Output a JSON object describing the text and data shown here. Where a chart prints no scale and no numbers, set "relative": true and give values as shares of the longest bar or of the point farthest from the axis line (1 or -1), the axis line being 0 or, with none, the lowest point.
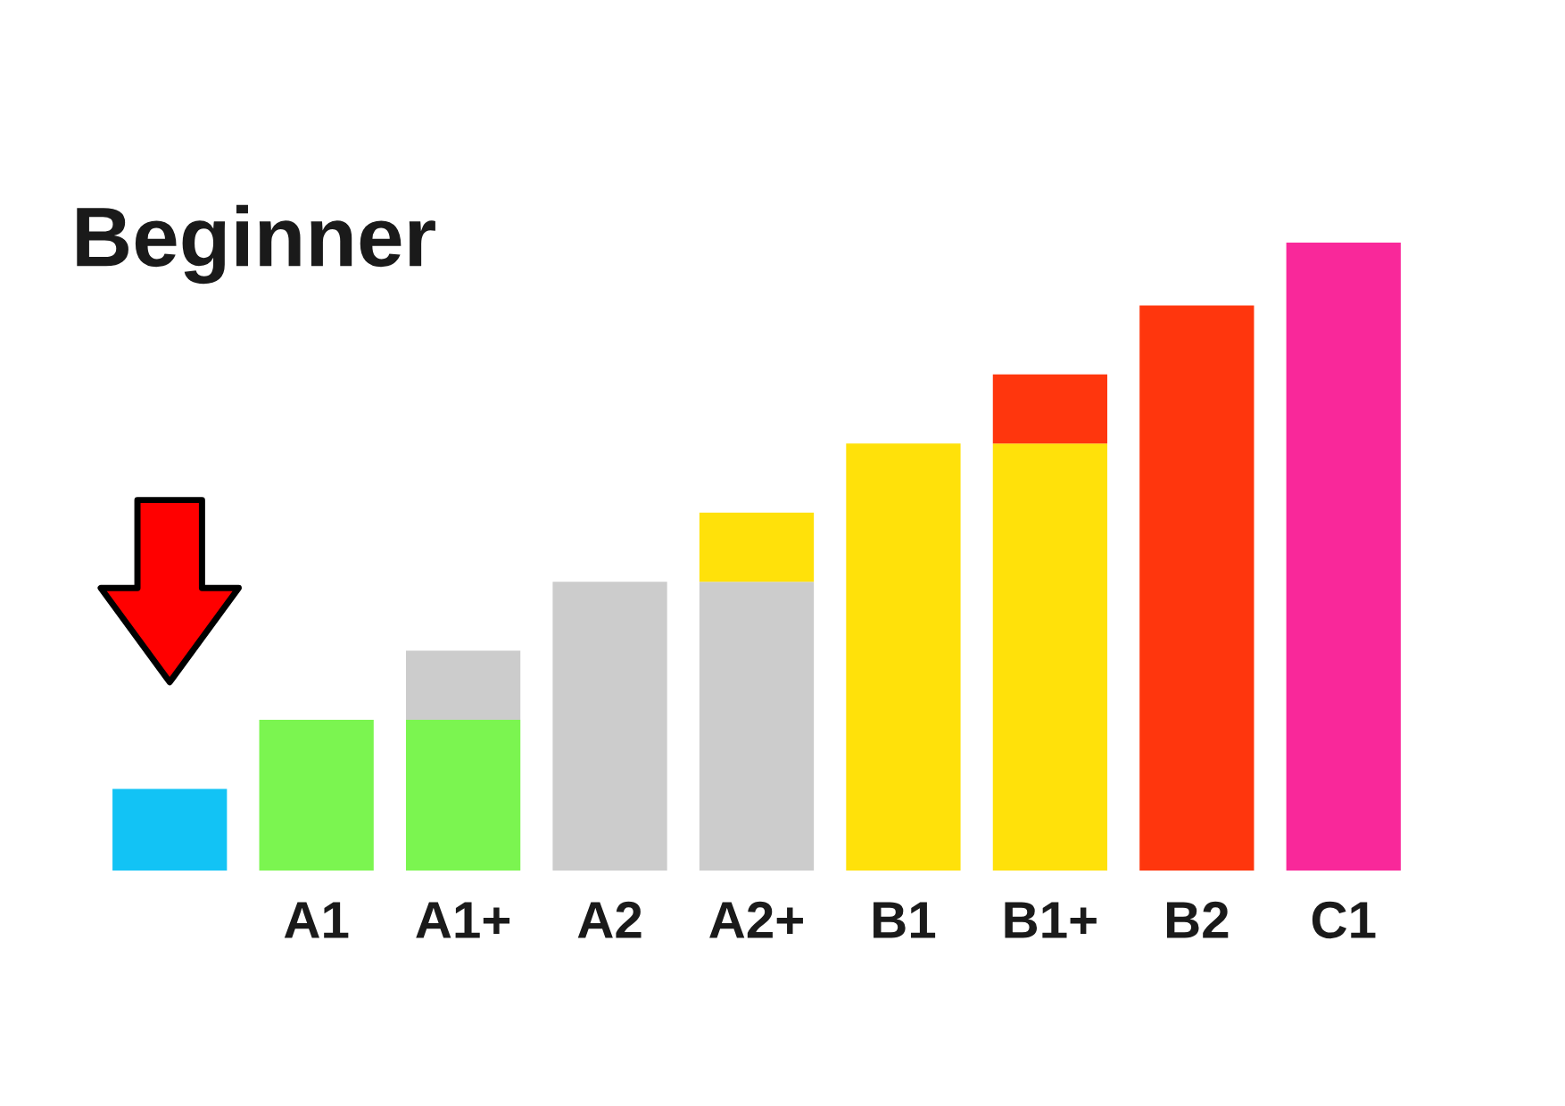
{
  "chart_data": {
    "type": "bar",
    "title": "Beginner",
    "categories": [
      null,
      "A1",
      "A1+",
      "A2",
      "A2+",
      "B1",
      "B1+",
      "B2",
      "C1"
    ],
    "stacked": true,
    "relative": true,
    "series": [
      {
        "values": [
          0.13,
          0.24,
          0.24,
          0.46,
          0.46,
          0.68,
          0.68,
          0.9,
          1
        ],
        "colors": [
          "#12c3f5",
          "#7bf550",
          "#7bf550",
          "#cccccc",
          "#cccccc",
          "#ffe10a",
          "#ffe10a",
          "#ff360d",
          "#f9289a"
        ]
      },
      {
        "values": [
          null,
          null,
          0.11,
          null,
          0.11,
          null,
          0.11,
          null,
          null
        ],
        "colors": [
          null,
          null,
          "#cccccc",
          null,
          "#ffe10a",
          null,
          "#ff360d",
          null,
          null
        ]
      }
    ]
  }
}
